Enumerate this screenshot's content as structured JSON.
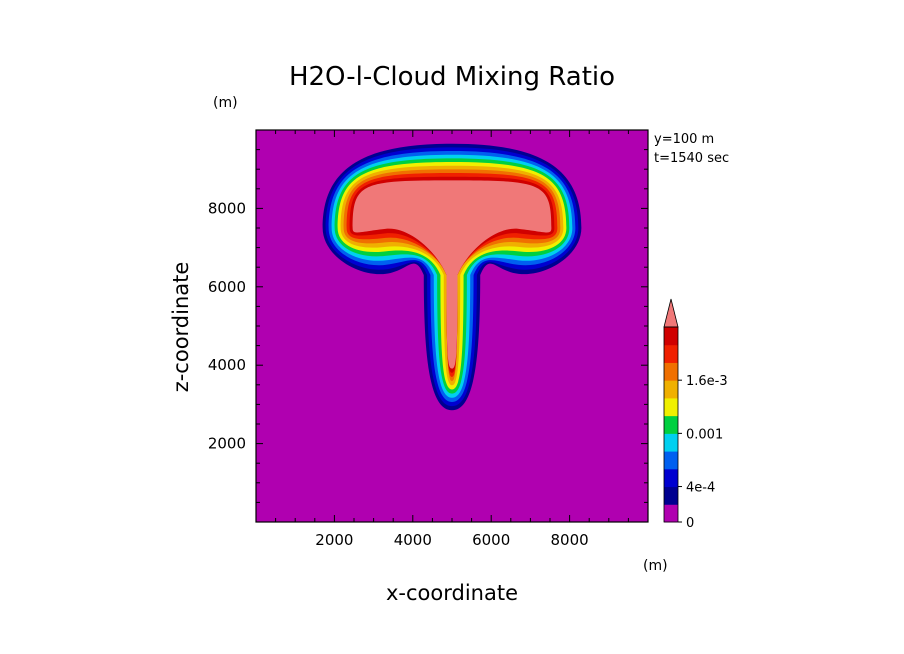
{
  "chart_data": {
    "type": "heatmap",
    "title": "H2O-l-Cloud Mixing Ratio",
    "xlabel": "x-coordinate",
    "ylabel": "z-coordinate",
    "x_unit": "(m)",
    "y_unit": "(m)",
    "annotations": [
      "y=100 m",
      "t=1540 sec"
    ],
    "xlim": [
      0,
      10000
    ],
    "ylim": [
      0,
      10000
    ],
    "x_ticks": [
      2000,
      4000,
      6000,
      8000
    ],
    "y_ticks": [
      2000,
      4000,
      6000,
      8000
    ],
    "x_tick_labels": [
      "2000",
      "4000",
      "6000",
      "8000"
    ],
    "y_tick_labels": [
      "2000",
      "4000",
      "6000",
      "8000"
    ],
    "background_color": "#b000b0",
    "colorbar": {
      "levels": [
        0,
        0.0002,
        0.0004,
        0.0006,
        0.0008,
        0.001,
        0.0012,
        0.0014,
        0.0016,
        0.0018,
        0.002
      ],
      "colors": [
        "#b000b0",
        "#000090",
        "#0000d0",
        "#0060f0",
        "#00d0f0",
        "#00d040",
        "#f0f000",
        "#f0b000",
        "#f07000",
        "#f02000",
        "#d00000"
      ],
      "over_color": "#f07878",
      "tick_values": [
        0,
        0.0004,
        0.001,
        0.0016
      ],
      "tick_labels": [
        "0",
        "4e-4",
        "0.001",
        "1.6e-3"
      ],
      "extend": "max"
    },
    "contours_description": "mushroom-shaped cloud: cap centered x~5000 m spanning z~6300-9600 m, stem from z~2900 m up to cap; interior exceeds 2e-3"
  }
}
